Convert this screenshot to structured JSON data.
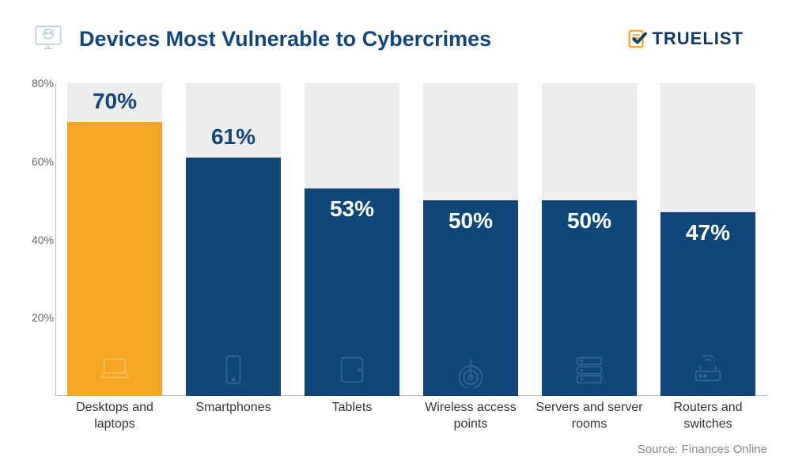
{
  "title": "Devices Most Vulnerable to Cybercrimes",
  "logo_text": "TRUELIST",
  "source": "Source: Finances Online",
  "chart": {
    "type": "bar",
    "ymax": 80,
    "yticks": [
      20,
      40,
      60,
      80
    ],
    "ytick_labels": [
      "20%",
      "40%",
      "60%",
      "80%"
    ],
    "bar_bg_color": "#ededed",
    "axis_color": "#bbbbbb",
    "highlight_color": "#f5a623",
    "bar_color": "#11467a",
    "value_text_color_inside": "#ffffff",
    "value_text_color_outside": "#11467a",
    "background_color": "#ffffff",
    "value_fontsize": 28,
    "label_fontsize": 16,
    "bars": [
      {
        "label": "Desktops and laptops",
        "value": 70,
        "value_label": "70%",
        "highlight": true,
        "value_outside": true,
        "icon": "laptop"
      },
      {
        "label": "Smartphones",
        "value": 61,
        "value_label": "61%",
        "highlight": false,
        "value_outside": true,
        "icon": "phone"
      },
      {
        "label": "Tablets",
        "value": 53,
        "value_label": "53%",
        "highlight": false,
        "value_outside": false,
        "icon": "tablet"
      },
      {
        "label": "Wireless access points",
        "value": 50,
        "value_label": "50%",
        "highlight": false,
        "value_outside": false,
        "icon": "wifi"
      },
      {
        "label": "Servers and server rooms",
        "value": 50,
        "value_label": "50%",
        "highlight": false,
        "value_outside": false,
        "icon": "server"
      },
      {
        "label": "Routers and switches",
        "value": 47,
        "value_label": "47%",
        "highlight": false,
        "value_outside": false,
        "icon": "router"
      }
    ]
  }
}
